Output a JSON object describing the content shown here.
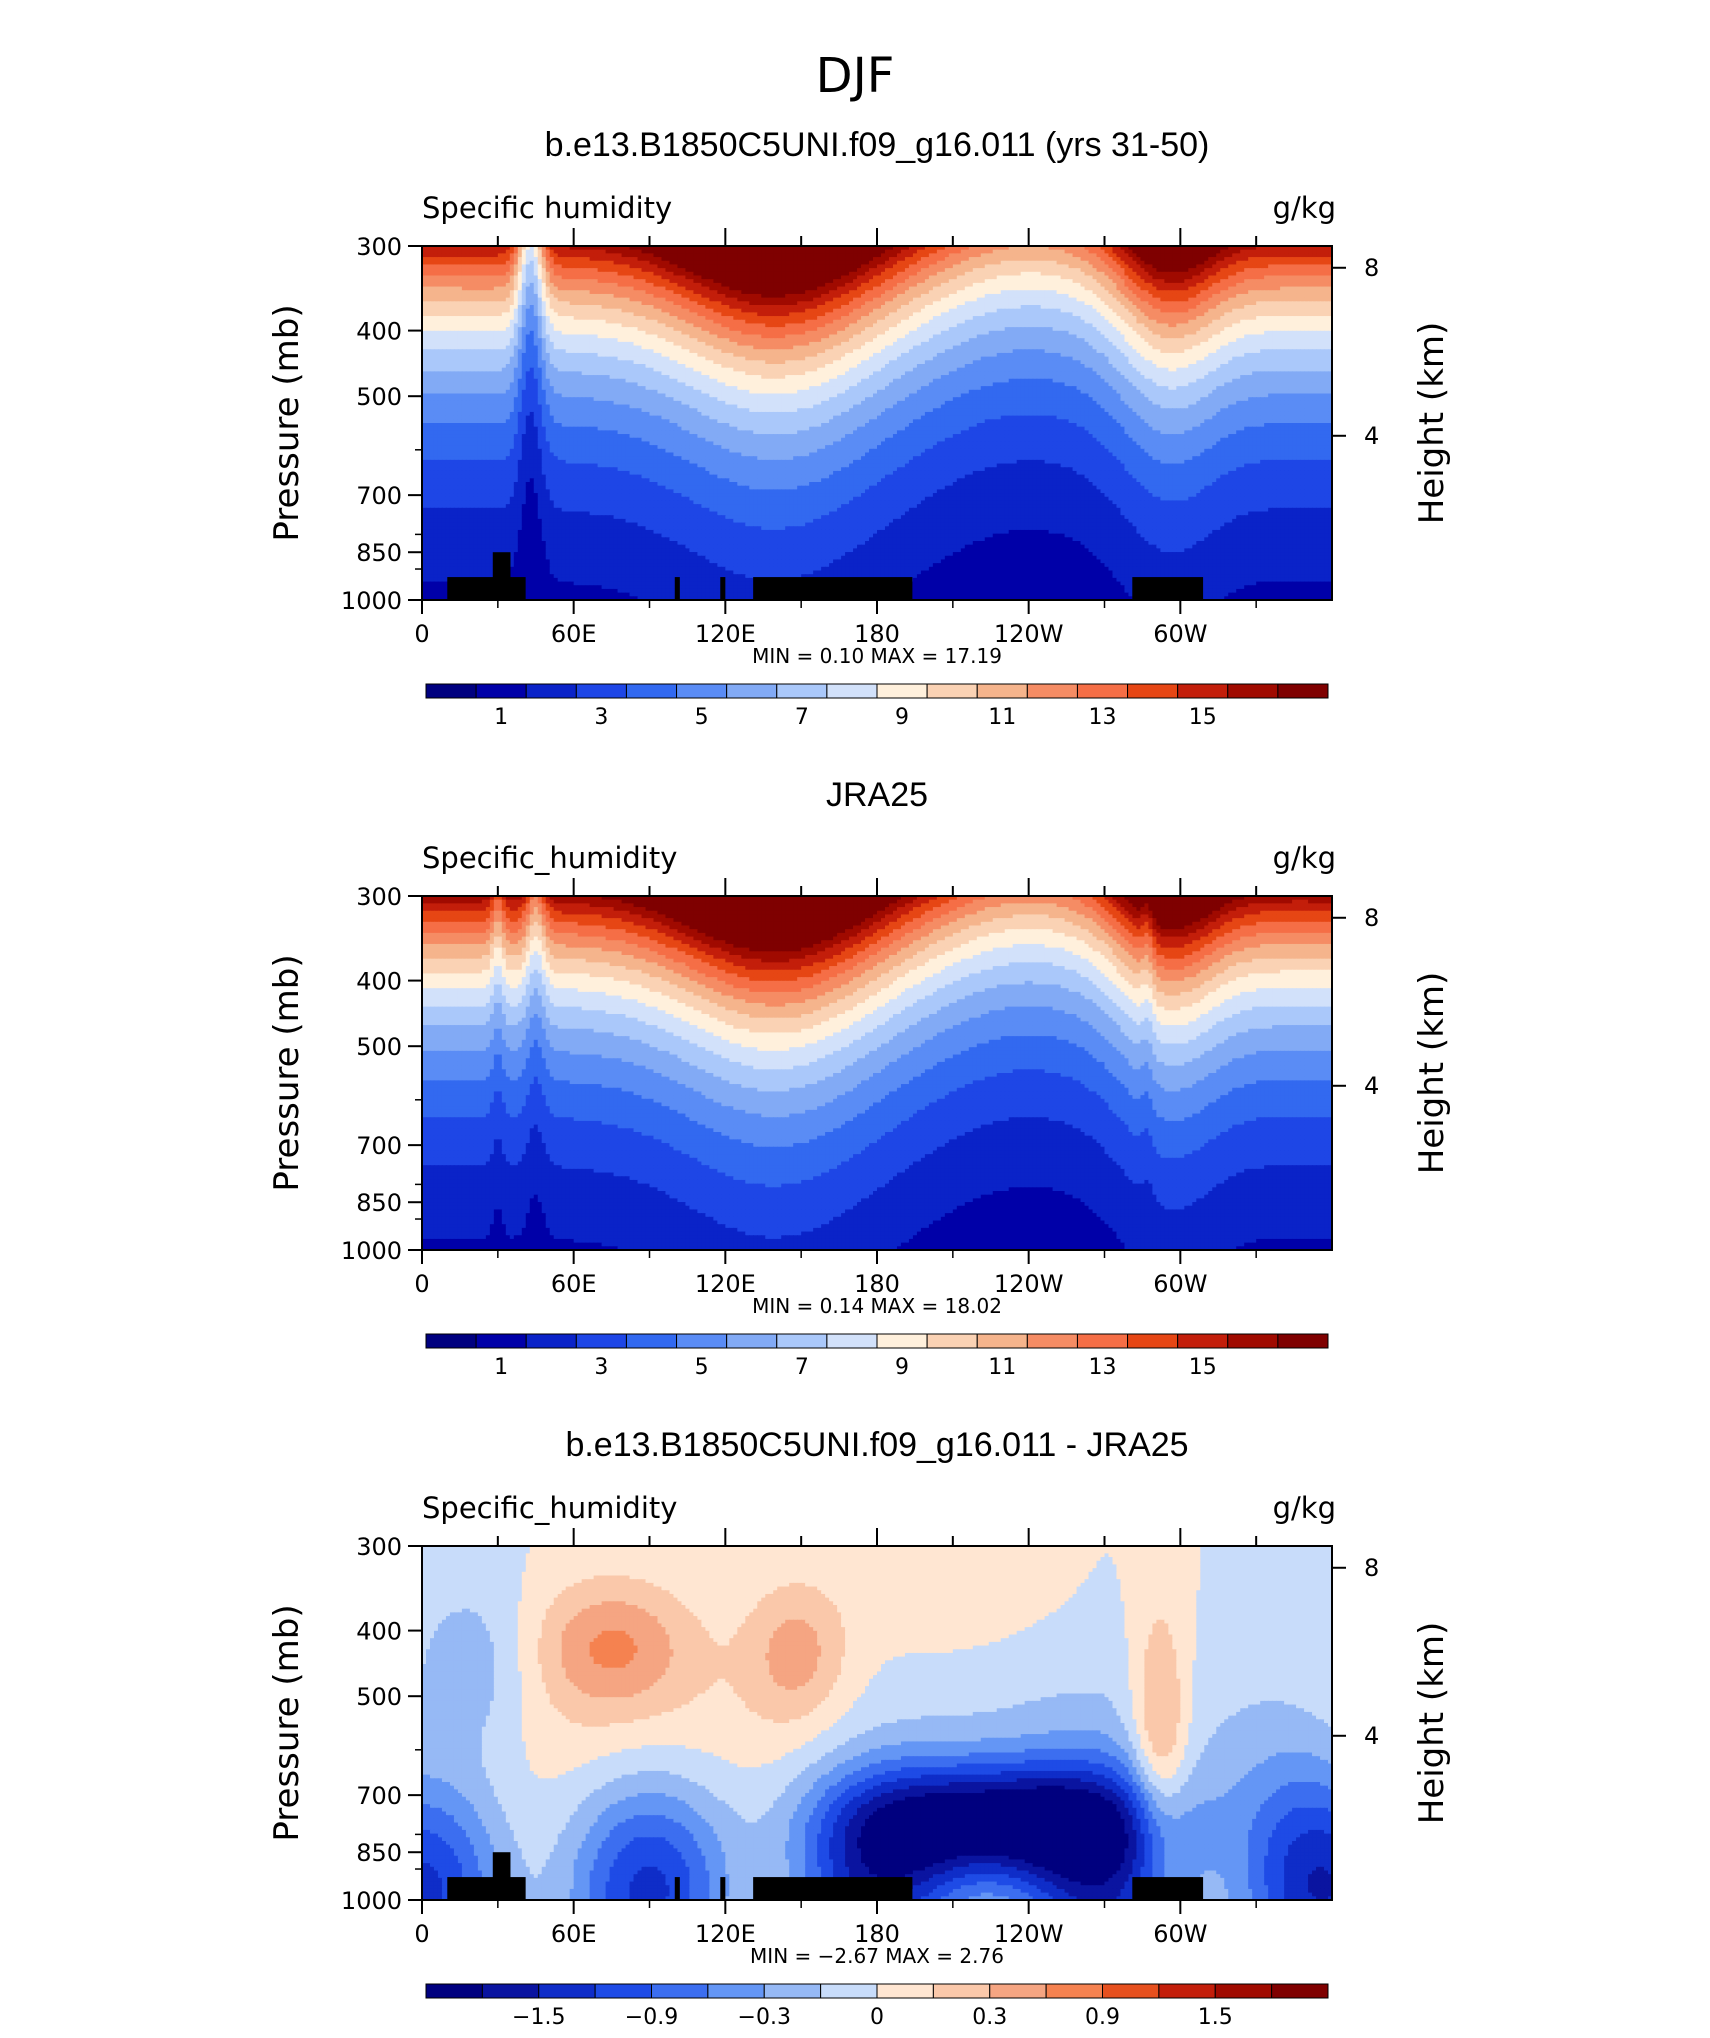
{
  "page_title": "DJF",
  "colors": {
    "ramp": [
      "#00007f",
      "#0000a8",
      "#0a23c8",
      "#1e46e6",
      "#3269f0",
      "#5a8cf5",
      "#82aaf5",
      "#aac8fa",
      "#d2e1fa",
      "#fff0dc",
      "#fad2b4",
      "#f5b48c",
      "#f58c64",
      "#f56e46",
      "#e64614",
      "#c31e0a",
      "#a00a00",
      "#7f0000"
    ],
    "diff": [
      "#00007f",
      "#0a14a0",
      "#0f2dc8",
      "#1e4be6",
      "#3c6ef0",
      "#6496f5",
      "#96b9f5",
      "#c8dcfa",
      "#ffe6d2",
      "#fac8aa",
      "#f5a582",
      "#f58250",
      "#e6501e",
      "#c31e0a",
      "#a00a00",
      "#7f0000"
    ],
    "topo": "#000000"
  },
  "chart_data": [
    {
      "type": "contour",
      "title": "b.e13.B1850C5UNI.f09_g16.011 (yrs 31-50)",
      "left_label": "Specific humidity",
      "right_label": "g/kg",
      "ylabel": "Pressure (mb)",
      "ylabel_right": "Height (km)",
      "yticks": [
        "300",
        "400",
        "500",
        "700",
        "850",
        "1000"
      ],
      "yticks_right": [
        "8",
        "4"
      ],
      "xticks": [
        "0",
        "60E",
        "120E",
        "180",
        "120W",
        "60W"
      ],
      "stats": "MIN =     0.10   MAX =    17.19",
      "colorbar_labels": [
        "1",
        "3",
        "5",
        "7",
        "9",
        "11",
        "13",
        "15"
      ],
      "range": [
        0.1,
        17.19
      ]
    },
    {
      "type": "contour",
      "title": "JRA25",
      "left_label": "Specific_humidity",
      "right_label": "g/kg",
      "ylabel": "Pressure (mb)",
      "ylabel_right": "Height (km)",
      "yticks": [
        "300",
        "400",
        "500",
        "700",
        "850",
        "1000"
      ],
      "yticks_right": [
        "8",
        "4"
      ],
      "xticks": [
        "0",
        "60E",
        "120E",
        "180",
        "120W",
        "60W"
      ],
      "stats": "MIN =     0.14   MAX =    18.02",
      "colorbar_labels": [
        "1",
        "3",
        "5",
        "7",
        "9",
        "11",
        "13",
        "15"
      ],
      "range": [
        0.14,
        18.02
      ]
    },
    {
      "type": "contour",
      "title": "b.e13.B1850C5UNI.f09_g16.011 - JRA25",
      "left_label": "Specific_humidity",
      "right_label": "g/kg",
      "ylabel": "Pressure (mb)",
      "ylabel_right": "Height (km)",
      "yticks": [
        "300",
        "400",
        "500",
        "700",
        "850",
        "1000"
      ],
      "yticks_right": [
        "8",
        "4"
      ],
      "xticks": [
        "0",
        "60E",
        "120E",
        "180",
        "120W",
        "60W"
      ],
      "stats": "MIN =   −2.67   MAX =    2.76",
      "colorbar_labels": [
        "−1.5",
        "−0.9",
        "−0.3",
        "0",
        "0.3",
        "0.9",
        "1.5"
      ],
      "range": [
        -2.67,
        2.76
      ]
    }
  ]
}
